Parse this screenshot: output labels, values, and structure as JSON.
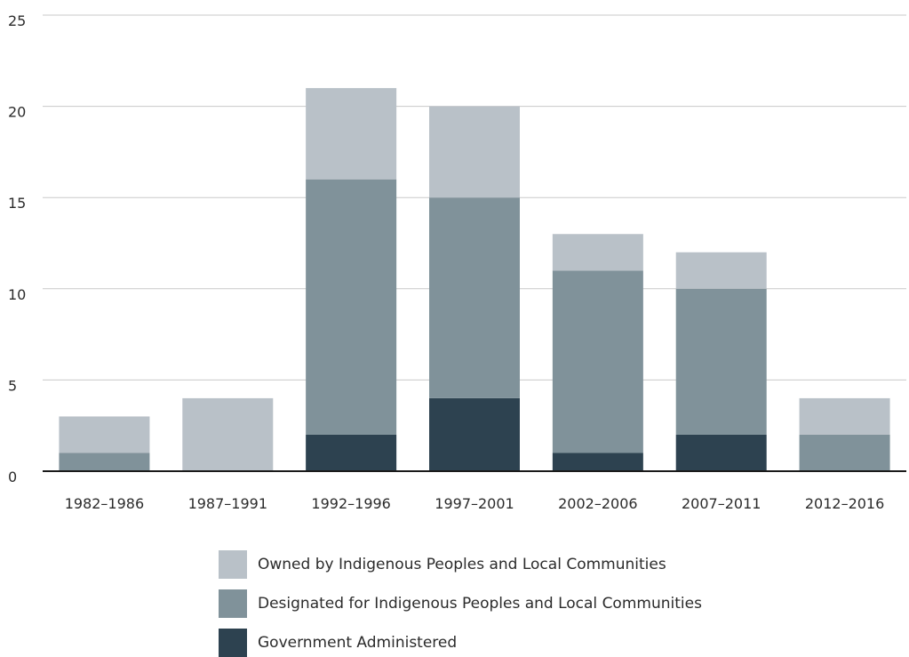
{
  "chart_data": {
    "type": "bar",
    "stacked": true,
    "categories": [
      "1982–1986",
      "1987–1991",
      "1992–1996",
      "1997–2001",
      "2002–2006",
      "2007–2011",
      "2012–2016"
    ],
    "series": [
      {
        "name": "Government Administered",
        "values": [
          0,
          0,
          2,
          4,
          1,
          2,
          0
        ],
        "color": "#2d4250"
      },
      {
        "name": "Designated for Indigenous Peoples and Local Communities",
        "values": [
          1,
          0,
          14,
          11,
          10,
          8,
          2
        ],
        "color": "#80929a"
      },
      {
        "name": "Owned by Indigenous Peoples and Local Communities",
        "values": [
          2,
          4,
          5,
          5,
          2,
          2,
          2
        ],
        "color": "#b9c1c8"
      }
    ],
    "ylim": [
      0,
      25
    ],
    "yticks": [
      0,
      5,
      10,
      15,
      20,
      25
    ],
    "ytick_labels": [
      "0",
      "5",
      "10",
      "15",
      "20",
      "25"
    ],
    "grid": true,
    "legend_position": "bottom"
  },
  "legend": {
    "items": [
      {
        "label": "Owned by Indigenous Peoples and Local Communities",
        "color": "#b9c1c8"
      },
      {
        "label": "Designated for Indigenous Peoples and Local Communities",
        "color": "#80929a"
      },
      {
        "label": "Government Administered",
        "color": "#2d4250"
      }
    ]
  }
}
